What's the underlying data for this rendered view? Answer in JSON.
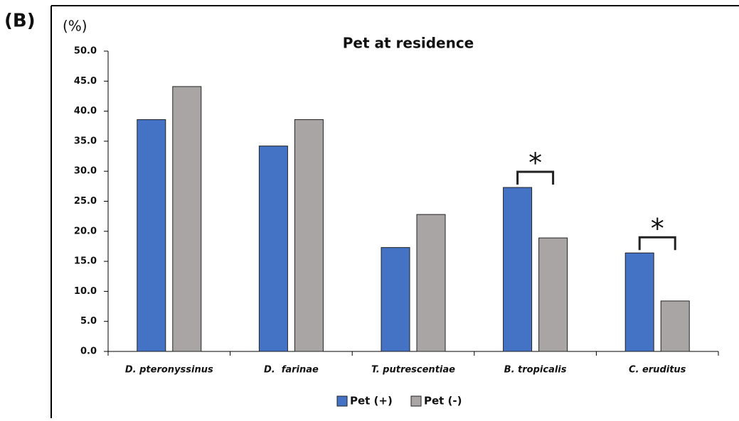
{
  "panel_label": "(B)",
  "chart_data": {
    "type": "bar",
    "title": "Pet at residence",
    "y_label": "(%)",
    "categories": [
      "D. pteronyssinus",
      "D.  farinae",
      "T. putrescentiae",
      "B. tropicalis",
      "C. eruditus"
    ],
    "series": [
      {
        "name": "Pet (+)",
        "color": "#4472c4",
        "values": [
          38.6,
          34.2,
          17.3,
          27.3,
          16.4
        ]
      },
      {
        "name": "Pet (-)",
        "color": "#a9a5a5",
        "values": [
          44.1,
          38.6,
          22.8,
          18.9,
          8.4
        ]
      }
    ],
    "ylim": [
      0,
      50
    ],
    "yticks": [
      {
        "value": 0,
        "label": "0.0"
      },
      {
        "value": 5,
        "label": "5.0"
      },
      {
        "value": 10,
        "label": "10.0"
      },
      {
        "value": 15,
        "label": "15.0"
      },
      {
        "value": 20,
        "label": "20.0"
      },
      {
        "value": 25,
        "label": "25.0"
      },
      {
        "value": 30,
        "label": "30.0"
      },
      {
        "value": 35,
        "label": "35.0"
      },
      {
        "value": 40,
        "label": "40.0"
      },
      {
        "value": 45,
        "label": "45.0"
      },
      {
        "value": 50,
        "label": "50.0"
      }
    ],
    "annotations": [
      {
        "text": "*",
        "category": "B. tropicalis"
      },
      {
        "text": "*",
        "category": "C. eruditus"
      }
    ],
    "legend": "bottom"
  }
}
